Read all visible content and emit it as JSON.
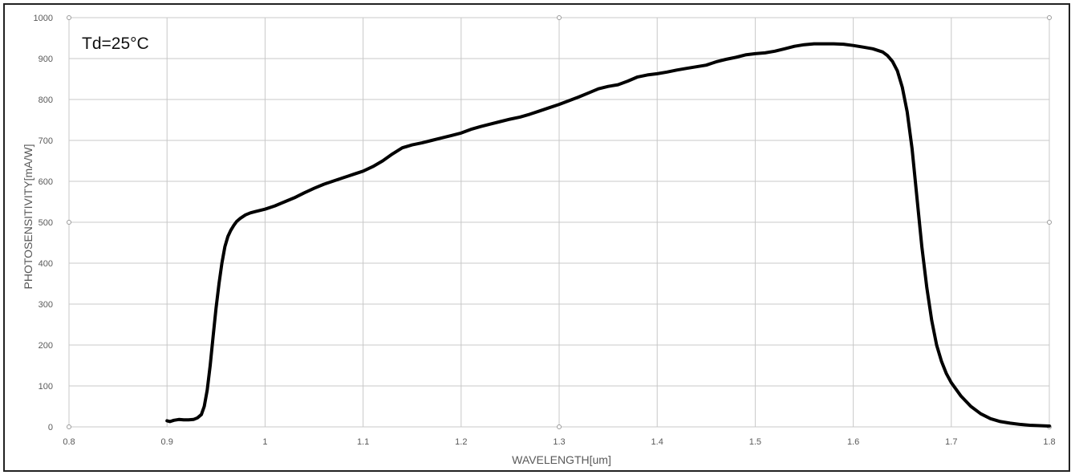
{
  "chart_data": {
    "type": "line",
    "title": "",
    "annotation": "Td=25°C",
    "xlabel": "WAVELENGTH[um]",
    "ylabel": "PHOTOSENSITIVITY[mA/W]",
    "xlim": [
      0.8,
      1.8
    ],
    "ylim": [
      0,
      1000
    ],
    "x_ticks": [
      "0.8",
      "0.9",
      "1",
      "1.1",
      "1.2",
      "1.3",
      "1.4",
      "1.5",
      "1.6",
      "1.7",
      "1.8"
    ],
    "y_ticks": [
      "0",
      "100",
      "200",
      "300",
      "400",
      "500",
      "600",
      "700",
      "800",
      "900",
      "1000"
    ],
    "grid": true,
    "line_color": "#000000",
    "grid_color": "#c8c8c8",
    "series": [
      {
        "x": [
          0.9,
          0.903,
          0.907,
          0.912,
          0.917,
          0.922,
          0.927,
          0.931,
          0.935,
          0.938,
          0.941,
          0.944,
          0.947,
          0.95,
          0.953,
          0.956,
          0.959,
          0.962,
          0.965,
          0.968,
          0.971,
          0.975,
          0.98,
          0.985,
          0.99,
          1.0,
          1.01,
          1.02,
          1.03,
          1.04,
          1.05,
          1.06,
          1.07,
          1.08,
          1.085,
          1.09,
          1.1,
          1.11,
          1.12,
          1.13,
          1.14,
          1.15,
          1.16,
          1.17,
          1.18,
          1.19,
          1.2,
          1.21,
          1.22,
          1.23,
          1.24,
          1.25,
          1.26,
          1.27,
          1.28,
          1.29,
          1.3,
          1.31,
          1.32,
          1.33,
          1.34,
          1.35,
          1.36,
          1.37,
          1.38,
          1.39,
          1.4,
          1.41,
          1.42,
          1.43,
          1.44,
          1.45,
          1.46,
          1.47,
          1.48,
          1.49,
          1.5,
          1.51,
          1.52,
          1.53,
          1.54,
          1.55,
          1.56,
          1.57,
          1.58,
          1.59,
          1.6,
          1.61,
          1.62,
          1.63,
          1.635,
          1.64,
          1.645,
          1.65,
          1.655,
          1.66,
          1.665,
          1.67,
          1.675,
          1.68,
          1.685,
          1.69,
          1.695,
          1.7,
          1.71,
          1.72,
          1.73,
          1.74,
          1.75,
          1.76,
          1.77,
          1.78,
          1.79,
          1.8
        ],
        "y": [
          15,
          13,
          16,
          18,
          17,
          17,
          18,
          22,
          30,
          50,
          90,
          150,
          220,
          290,
          350,
          400,
          440,
          465,
          480,
          492,
          502,
          510,
          518,
          523,
          526,
          532,
          540,
          550,
          560,
          572,
          583,
          593,
          601,
          609,
          613,
          617,
          625,
          636,
          650,
          667,
          682,
          689,
          694,
          700,
          706,
          712,
          718,
          727,
          734,
          740,
          746,
          752,
          757,
          764,
          772,
          780,
          788,
          797,
          806,
          816,
          826,
          832,
          836,
          845,
          855,
          860,
          863,
          867,
          872,
          876,
          880,
          884,
          892,
          898,
          903,
          909,
          912,
          914,
          918,
          924,
          930,
          934,
          936,
          936,
          936,
          935,
          932,
          928,
          924,
          916,
          907,
          893,
          870,
          830,
          770,
          680,
          560,
          440,
          340,
          260,
          200,
          160,
          130,
          108,
          75,
          50,
          32,
          20,
          13,
          9,
          6,
          4,
          3,
          2
        ]
      }
    ]
  }
}
